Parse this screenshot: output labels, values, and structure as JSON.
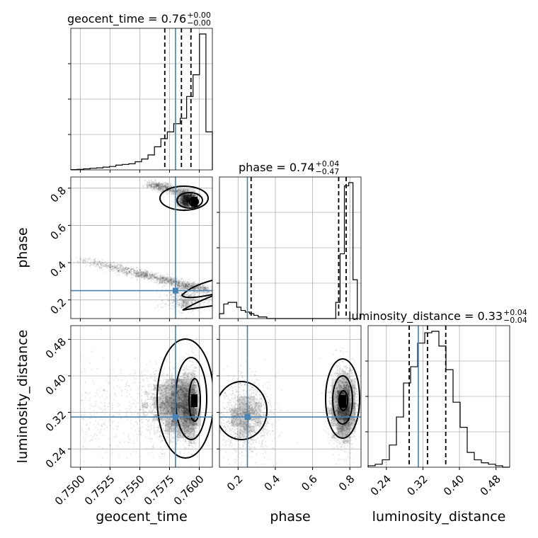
{
  "chart_data": {
    "type": "corner",
    "parameters": [
      "geocent_time",
      "phase",
      "luminosity_distance"
    ],
    "truth": {
      "geocent_time": 0.758,
      "phase": 0.25,
      "luminosity_distance": 0.31
    },
    "titles": [
      {
        "param": "geocent_time",
        "text": "geocent_time = 0.76",
        "sup": "+0.00",
        "sub": "−0.00"
      },
      {
        "param": "phase",
        "text": "phase = 0.74",
        "sup": "+0.04",
        "sub": "−0.47"
      },
      {
        "param": "luminosity_distance",
        "text": "luminosity_distance = 0.33",
        "sup": "+0.04",
        "sub": "−0.04"
      }
    ],
    "axes_labels": {
      "geocent_time": "geocent_time",
      "phase": "phase",
      "luminosity_distance": "luminosity_distance"
    },
    "ticks": {
      "geocent_time": [
        "0.7500",
        "0.7525",
        "0.7550",
        "0.7575",
        "0.7600"
      ],
      "phase": [
        "0.2",
        "0.4",
        "0.6",
        "0.8"
      ],
      "luminosity_distance": [
        "0.24",
        "0.32",
        "0.40",
        "0.48"
      ]
    },
    "histograms": [
      {
        "param": "geocent_time",
        "range": [
          0.7492,
          0.7611
        ],
        "counts": [
          0.2,
          0.4,
          0.8,
          1.2,
          1.5,
          2,
          2.5,
          3.5,
          4,
          4.5,
          6,
          8,
          11,
          17,
          23,
          28,
          34,
          38,
          54,
          70,
          100,
          28
        ],
        "quantiles": [
          0.7571,
          0.7585,
          0.7593
        ]
      },
      {
        "param": "phase",
        "range": [
          0.1,
          0.84
        ],
        "counts": [
          3,
          9,
          10,
          10,
          7,
          5,
          4,
          3,
          2,
          1,
          1,
          0,
          0,
          0,
          0,
          0,
          0,
          0,
          0,
          0,
          0,
          0,
          0,
          0,
          0,
          0,
          0,
          10,
          40,
          82,
          84,
          24
        ],
        "quantiles": [
          0.27,
          0.74,
          0.78
        ]
      },
      {
        "param": "luminosity_distance",
        "range": [
          0.2,
          0.51
        ],
        "counts": [
          1,
          2,
          5,
          15,
          34,
          57,
          68,
          84,
          91,
          92,
          82,
          66,
          44,
          27,
          10,
          5,
          3,
          2,
          1,
          0
        ],
        "quantiles": [
          0.29,
          0.33,
          0.37
        ]
      }
    ],
    "levels_2d": [
      0.39,
      0.86,
      0.99
    ],
    "grid": true
  }
}
